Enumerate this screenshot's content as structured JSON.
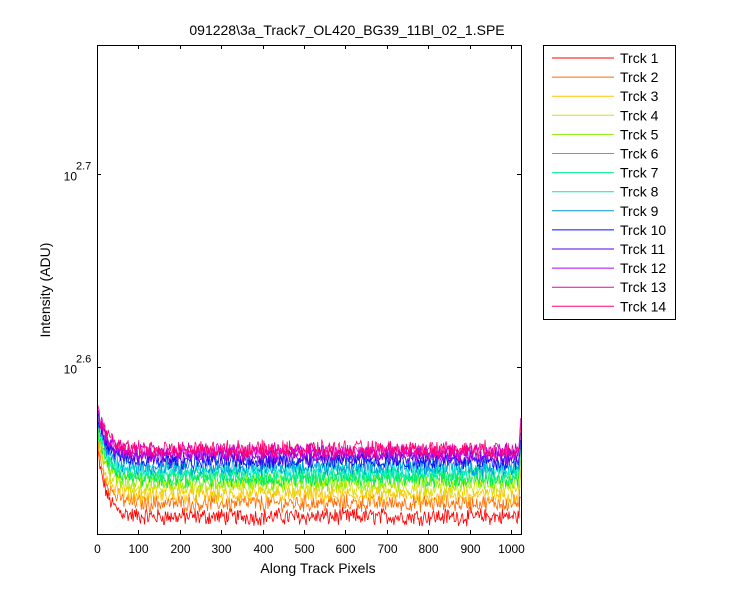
{
  "figure": {
    "title": "091228\\3a_Track7_OL420_BG39_11Bl_02_1.SPE"
  },
  "chart_data": {
    "type": "line",
    "title": "091228\\3a_Track7_OL420_BG39_11Bl_02_1.SPE",
    "xlabel": "Along Track Pixels",
    "ylabel": "Intensity (ADU)",
    "xlim": [
      0,
      1024
    ],
    "ylim": [
      2.513,
      2.767
    ],
    "yscale": "log10",
    "grid": false,
    "legend_position": "outside-top-right",
    "x_ticks": [
      "0",
      "100",
      "200",
      "300",
      "400",
      "500",
      "600",
      "700",
      "800",
      "900",
      "1000"
    ],
    "y_ticks": [
      {
        "base": "10",
        "exponent": "2.6",
        "log_value": 2.6
      },
      {
        "base": "10",
        "exponent": "2.7",
        "log_value": 2.7
      }
    ],
    "x_range": [
      1,
      1024
    ],
    "series": [
      {
        "name": "Trck 1",
        "color": "#ff0000",
        "y_start": 2.556,
        "y_flat": 2.522
      },
      {
        "name": "Trck 2",
        "color": "#ff6a00",
        "y_start": 2.56,
        "y_flat": 2.529
      },
      {
        "name": "Trck 3",
        "color": "#ffc400",
        "y_start": 2.563,
        "y_flat": 2.533
      },
      {
        "name": "Trck 4",
        "color": "#d4e000",
        "y_start": 2.566,
        "y_flat": 2.537
      },
      {
        "name": "Trck 5",
        "color": "#88f000",
        "y_start": 2.568,
        "y_flat": 2.54
      },
      {
        "name": "Trck 6",
        "color": "#00e84a",
        "y_start": 2.57,
        "y_flat": 2.542
      },
      {
        "name": "Trck 7",
        "color": "#00f08a",
        "y_start": 2.572,
        "y_flat": 2.544
      },
      {
        "name": "Trck 8",
        "color": "#00e8cc",
        "y_start": 2.573,
        "y_flat": 2.546
      },
      {
        "name": "Trck 9",
        "color": "#0098d8",
        "y_start": 2.574,
        "y_flat": 2.548
      },
      {
        "name": "Trck 10",
        "color": "#0010ff",
        "y_start": 2.575,
        "y_flat": 2.551
      },
      {
        "name": "Trck 11",
        "color": "#5000e0",
        "y_start": 2.576,
        "y_flat": 2.553
      },
      {
        "name": "Trck 12",
        "color": "#b000f0",
        "y_start": 2.577,
        "y_flat": 2.555
      },
      {
        "name": "Trck 13",
        "color": "#e800b8",
        "y_start": 2.578,
        "y_flat": 2.556
      },
      {
        "name": "Trck 14",
        "color": "#ff0070",
        "y_start": 2.579,
        "y_flat": 2.557
      }
    ]
  }
}
